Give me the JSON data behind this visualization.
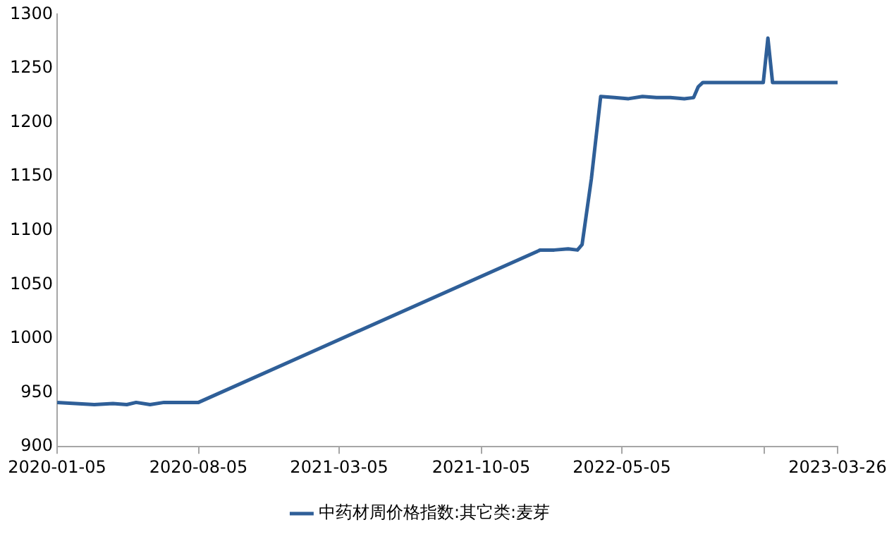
{
  "chart_data": {
    "type": "line",
    "x": [
      "2020-01-05",
      "2020-02-02",
      "2020-03-01",
      "2020-03-29",
      "2020-04-19",
      "2020-05-03",
      "2020-05-24",
      "2020-06-14",
      "2020-07-12",
      "2020-08-05",
      "2022-01-02",
      "2022-01-23",
      "2022-02-13",
      "2022-02-27",
      "2022-03-06",
      "2022-03-20",
      "2022-04-03",
      "2022-04-24",
      "2022-05-15",
      "2022-06-05",
      "2022-06-26",
      "2022-07-17",
      "2022-08-07",
      "2022-08-21",
      "2022-08-28",
      "2022-09-04",
      "2022-10-16",
      "2022-12-04",
      "2022-12-11",
      "2022-12-18",
      "2023-02-05",
      "2023-03-26"
    ],
    "series": [
      {
        "name": "中药材周价格指数:其它类:麦芽",
        "color": "#2f5f98",
        "values": [
          941,
          940,
          939,
          940,
          939,
          941,
          939,
          941,
          941,
          941,
          1082,
          1082,
          1083,
          1082,
          1087,
          1148,
          1224,
          1223,
          1222,
          1224,
          1223,
          1223,
          1222,
          1223,
          1233,
          1237,
          1237,
          1237,
          1278,
          1237,
          1237,
          1237
        ]
      }
    ],
    "xlim": [
      "2020-01-05",
      "2023-03-26"
    ],
    "xticks": [
      {
        "value": "2020-01-05",
        "label": "2020-01-05"
      },
      {
        "value": "2020-08-05",
        "label": "2020-08-05"
      },
      {
        "value": "2021-03-05",
        "label": "2021-03-05"
      },
      {
        "value": "2021-10-05",
        "label": "2021-10-05"
      },
      {
        "value": "2022-05-05",
        "label": "2022-05-05"
      },
      {
        "value": "2022-12-05",
        "label": null
      },
      {
        "value": "2023-03-26",
        "label": "2023-03-26"
      }
    ],
    "ylim": [
      900,
      1300
    ],
    "yticks": [
      900,
      950,
      1000,
      1050,
      1100,
      1150,
      1200,
      1250,
      1300
    ],
    "grid": false,
    "legend": "bottom",
    "marker": "none",
    "line_style": "solid"
  }
}
